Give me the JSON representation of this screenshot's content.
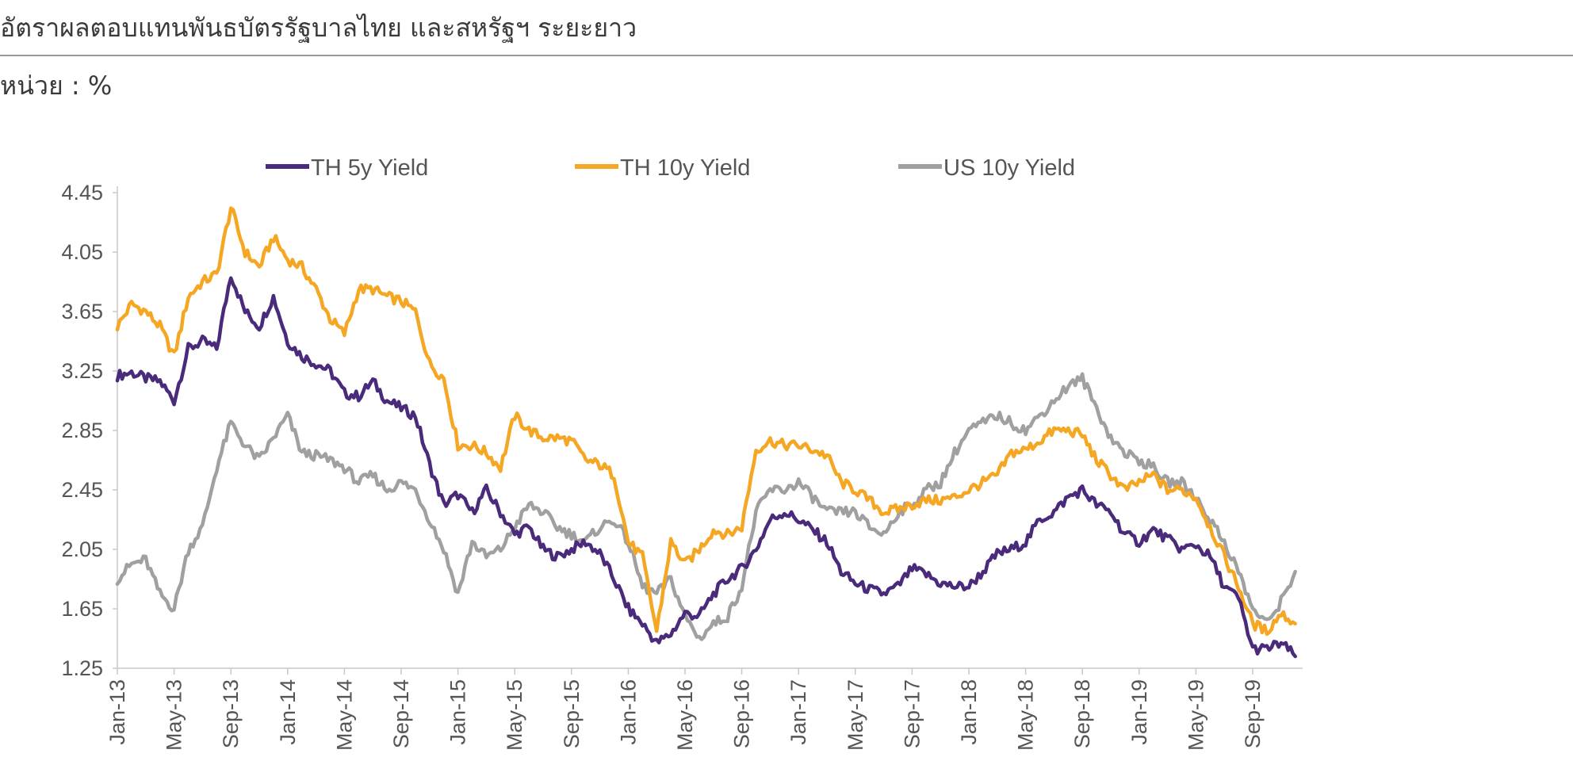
{
  "header": {
    "title": "อัตราผลตอบแทนพันธบัตรรัฐบาลไทย และสหรัฐฯ ระยะยาว",
    "unit": "หน่วย : %"
  },
  "colors": {
    "th5y": "#4a2a7a",
    "th10y": "#f5a623",
    "us10y": "#a0a0a0",
    "axis": "#c8c8c8"
  },
  "chart_data": {
    "type": "line",
    "ylim": [
      1.25,
      4.45
    ],
    "yticks": [
      "4.45",
      "4.05",
      "3.65",
      "3.25",
      "2.85",
      "2.45",
      "2.05",
      "1.65",
      "1.25"
    ],
    "xticks": [
      "Jan-13",
      "May-13",
      "Sep-13",
      "Jan-14",
      "May-14",
      "Sep-14",
      "Jan-15",
      "May-15",
      "Sep-15",
      "Jan-16",
      "May-16",
      "Sep-16",
      "Jan-17",
      "May-17",
      "Sep-17",
      "Jan-18",
      "May-18",
      "Sep-18",
      "Jan-19",
      "May-19",
      "Sep-19"
    ],
    "x_months": [
      0,
      1,
      2,
      3,
      4,
      5,
      6,
      7,
      8,
      9,
      10,
      11,
      12,
      13,
      14,
      15,
      16,
      17,
      18,
      19,
      20,
      21,
      22,
      23,
      24,
      25,
      26,
      27,
      28,
      29,
      30,
      31,
      32,
      33,
      34,
      35,
      36,
      37,
      38,
      39,
      40,
      41,
      42,
      43,
      44,
      45,
      46,
      47,
      48,
      49,
      50,
      51,
      52,
      53,
      54,
      55,
      56,
      57,
      58,
      59,
      60,
      61,
      62,
      63,
      64,
      65,
      66,
      67,
      68,
      69,
      70,
      71,
      72,
      73,
      74,
      75,
      76,
      77,
      78,
      79,
      80,
      81,
      82,
      83
    ],
    "legend_position": "top",
    "grid": false,
    "series": [
      {
        "name": "TH 5y Yield",
        "color": "#4a2a7a",
        "values": [
          3.22,
          3.24,
          3.2,
          3.18,
          3.05,
          3.4,
          3.45,
          3.4,
          3.9,
          3.65,
          3.55,
          3.75,
          3.45,
          3.35,
          3.3,
          3.25,
          3.1,
          3.08,
          3.18,
          3.05,
          3.0,
          2.95,
          2.62,
          2.35,
          2.42,
          2.3,
          2.45,
          2.3,
          2.15,
          2.2,
          2.05,
          2.0,
          2.05,
          2.1,
          2.02,
          1.85,
          1.65,
          1.55,
          1.42,
          1.48,
          1.62,
          1.6,
          1.75,
          1.85,
          1.92,
          2.05,
          2.25,
          2.3,
          2.25,
          2.18,
          2.1,
          1.9,
          1.82,
          1.78,
          1.75,
          1.8,
          1.92,
          1.88,
          1.82,
          1.8,
          1.8,
          1.9,
          2.02,
          2.05,
          2.1,
          2.25,
          2.3,
          2.4,
          2.45,
          2.35,
          2.3,
          2.15,
          2.1,
          2.18,
          2.12,
          2.05,
          2.08,
          2.0,
          1.8,
          1.72,
          1.38,
          1.38,
          1.42,
          1.33
        ]
      },
      {
        "name": "TH 10y Yield",
        "color": "#f5a623",
        "values": [
          3.55,
          3.7,
          3.65,
          3.55,
          3.35,
          3.75,
          3.85,
          3.9,
          4.35,
          4.05,
          3.95,
          4.15,
          4.0,
          3.95,
          3.8,
          3.6,
          3.5,
          3.8,
          3.8,
          3.75,
          3.72,
          3.65,
          3.3,
          3.2,
          2.75,
          2.75,
          2.7,
          2.6,
          2.95,
          2.85,
          2.8,
          2.8,
          2.78,
          2.65,
          2.62,
          2.55,
          2.1,
          2.0,
          1.5,
          2.1,
          1.95,
          2.05,
          2.18,
          2.15,
          2.2,
          2.72,
          2.78,
          2.75,
          2.75,
          2.72,
          2.68,
          2.5,
          2.45,
          2.38,
          2.3,
          2.32,
          2.35,
          2.38,
          2.38,
          2.4,
          2.45,
          2.5,
          2.55,
          2.7,
          2.72,
          2.78,
          2.85,
          2.85,
          2.82,
          2.65,
          2.55,
          2.45,
          2.5,
          2.55,
          2.45,
          2.45,
          2.4,
          2.2,
          2.0,
          1.8,
          1.55,
          1.5,
          1.62,
          1.55
        ]
      },
      {
        "name": "US 10y Yield",
        "color": "#a0a0a0",
        "values": [
          1.85,
          1.95,
          1.98,
          1.75,
          1.65,
          2.05,
          2.2,
          2.6,
          2.9,
          2.75,
          2.65,
          2.8,
          2.95,
          2.7,
          2.68,
          2.65,
          2.6,
          2.5,
          2.55,
          2.45,
          2.5,
          2.45,
          2.25,
          2.05,
          1.75,
          2.1,
          2.0,
          2.05,
          2.2,
          2.35,
          2.3,
          2.2,
          2.15,
          2.1,
          2.2,
          2.25,
          2.1,
          1.8,
          1.75,
          1.85,
          1.6,
          1.45,
          1.55,
          1.6,
          1.8,
          2.3,
          2.45,
          2.45,
          2.5,
          2.4,
          2.3,
          2.3,
          2.3,
          2.2,
          2.15,
          2.3,
          2.35,
          2.45,
          2.5,
          2.7,
          2.85,
          2.9,
          2.95,
          2.9,
          2.85,
          2.95,
          3.05,
          3.15,
          3.2,
          3.0,
          2.8,
          2.7,
          2.65,
          2.6,
          2.5,
          2.5,
          2.4,
          2.25,
          2.1,
          1.9,
          1.65,
          1.55,
          1.7,
          1.9
        ]
      }
    ]
  }
}
